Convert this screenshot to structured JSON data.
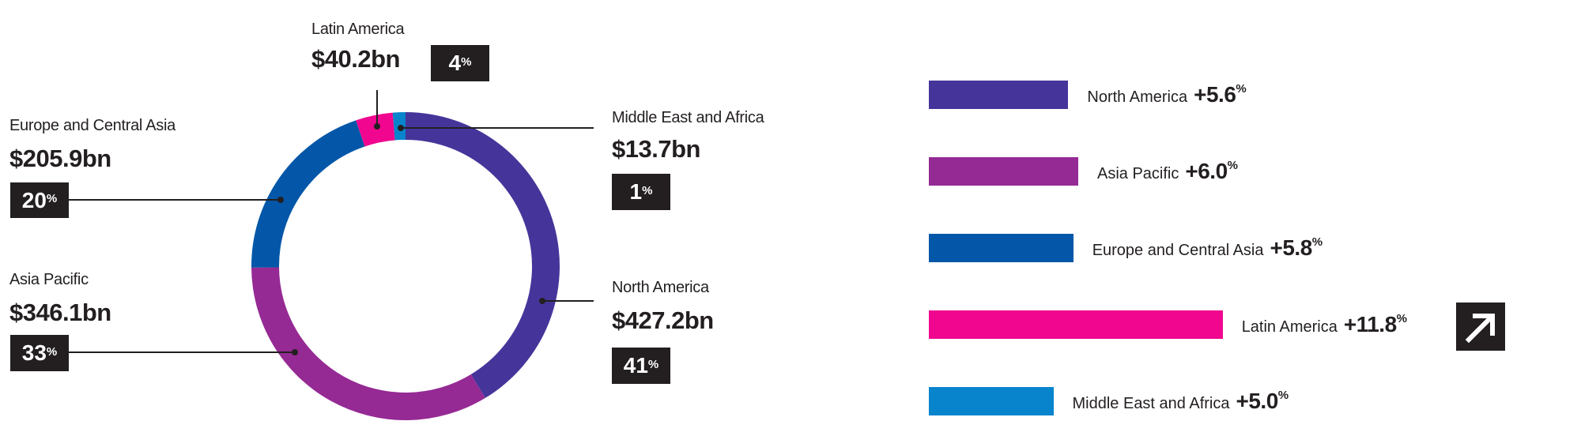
{
  "chart_data": [
    {
      "type": "pie",
      "variant": "donut",
      "slices": [
        {
          "name": "North America",
          "amount": "$427.2bn",
          "value": 427.2,
          "pct": "41",
          "color": "#45359a"
        },
        {
          "name": "Asia Pacific",
          "amount": "$346.1bn",
          "value": 346.1,
          "pct": "33",
          "color": "#952a94"
        },
        {
          "name": "Europe and Central Asia",
          "amount": "$205.9bn",
          "value": 205.9,
          "pct": "20",
          "color": "#0457a8"
        },
        {
          "name": "Latin America",
          "amount": "$40.2bn",
          "value": 40.2,
          "pct": "4",
          "color": "#f0068f"
        },
        {
          "name": "Middle East and Africa",
          "amount": "$13.7bn",
          "value": 13.7,
          "pct": "1",
          "color": "#0884cc"
        }
      ],
      "pct_unit": "%"
    },
    {
      "type": "bar",
      "orientation": "horizontal",
      "categories": [
        "North America",
        "Asia Pacific",
        "Europe and Central Asia",
        "Latin America",
        "Middle East and Africa"
      ],
      "values": [
        5.6,
        6.0,
        5.8,
        11.8,
        5.0
      ],
      "labels": [
        "+5.6",
        "+6.0",
        "+5.8",
        "+11.8",
        "+5.0"
      ],
      "colors": [
        "#45359a",
        "#952a94",
        "#0457a8",
        "#f0068f",
        "#0884cc"
      ],
      "unit": "%",
      "highlight": {
        "category": "Latin America",
        "icon": "arrow-up-right-icon"
      }
    }
  ]
}
